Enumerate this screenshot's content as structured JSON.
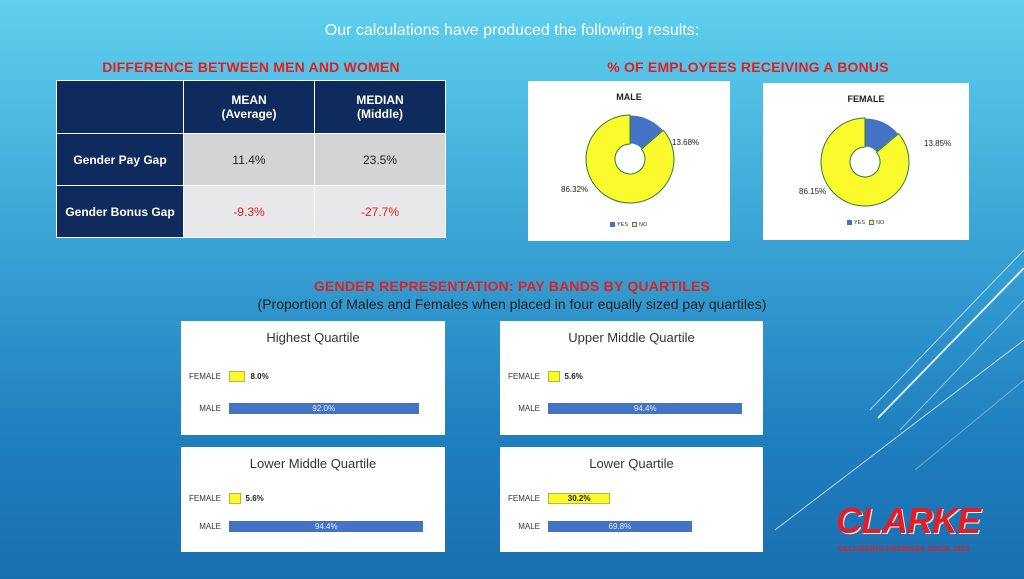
{
  "intro": "Our calculations have produced the following results:",
  "pay_gap": {
    "title": "DIFFERENCE BETWEEN MEN AND WOMEN",
    "columns": [
      {
        "line1": "MEAN",
        "line2": "(Average)"
      },
      {
        "line1": "MEDIAN",
        "line2": "(Middle)"
      }
    ],
    "rows": [
      {
        "label": "Gender Pay Gap",
        "mean": "11.4%",
        "median": "23.5%"
      },
      {
        "label": "Gender Bonus Gap",
        "mean": "-9.3%",
        "median": "-27.7%"
      }
    ]
  },
  "bonus": {
    "title": "% OF EMPLOYEES RECEIVING A BONUS",
    "legend": [
      "YES",
      "NO"
    ],
    "colors": {
      "yes": "#4472c4",
      "no": "#fafa2c",
      "no_border": "#2e7d32"
    }
  },
  "quartiles": {
    "title": "GENDER REPRESENTATION: PAY BANDS BY QUARTILES",
    "subtitle": "(Proportion of Males and Females when placed in four equally sized pay quartiles)",
    "colors": {
      "female": "#fafa2c",
      "male": "#4472c4"
    }
  },
  "logo": {
    "word": "CLARKE",
    "tagline": "DELIVERING PROMISES SINCE 1935"
  },
  "chart_data": [
    {
      "type": "pie",
      "title": "MALE",
      "categories": [
        "YES",
        "NO"
      ],
      "values": [
        13.68,
        86.32
      ],
      "labels": [
        "13.68%",
        "86.32%"
      ],
      "legend_position": "bottom"
    },
    {
      "type": "pie",
      "title": "FEMALE",
      "categories": [
        "YES",
        "NO"
      ],
      "values": [
        13.85,
        86.15
      ],
      "labels": [
        "13.85%",
        "86.15%"
      ],
      "legend_position": "bottom"
    },
    {
      "type": "bar",
      "title": "Highest Quartile",
      "categories": [
        "FEMALE",
        "MALE"
      ],
      "values": [
        8.0,
        92.0
      ],
      "labels": [
        "8.0%",
        "92.0%"
      ]
    },
    {
      "type": "bar",
      "title": "Upper Middle Quartile",
      "categories": [
        "FEMALE",
        "MALE"
      ],
      "values": [
        5.6,
        94.4
      ],
      "labels": [
        "5.6%",
        "94.4%"
      ]
    },
    {
      "type": "bar",
      "title": "Lower Middle Quartile",
      "categories": [
        "FEMALE",
        "MALE"
      ],
      "values": [
        5.6,
        94.4
      ],
      "labels": [
        "5.6%",
        "94.4%"
      ]
    },
    {
      "type": "bar",
      "title": "Lower Quartile",
      "categories": [
        "FEMALE",
        "MALE"
      ],
      "values": [
        30.2,
        69.8
      ],
      "labels": [
        "30.2%",
        "69.8%"
      ]
    }
  ]
}
